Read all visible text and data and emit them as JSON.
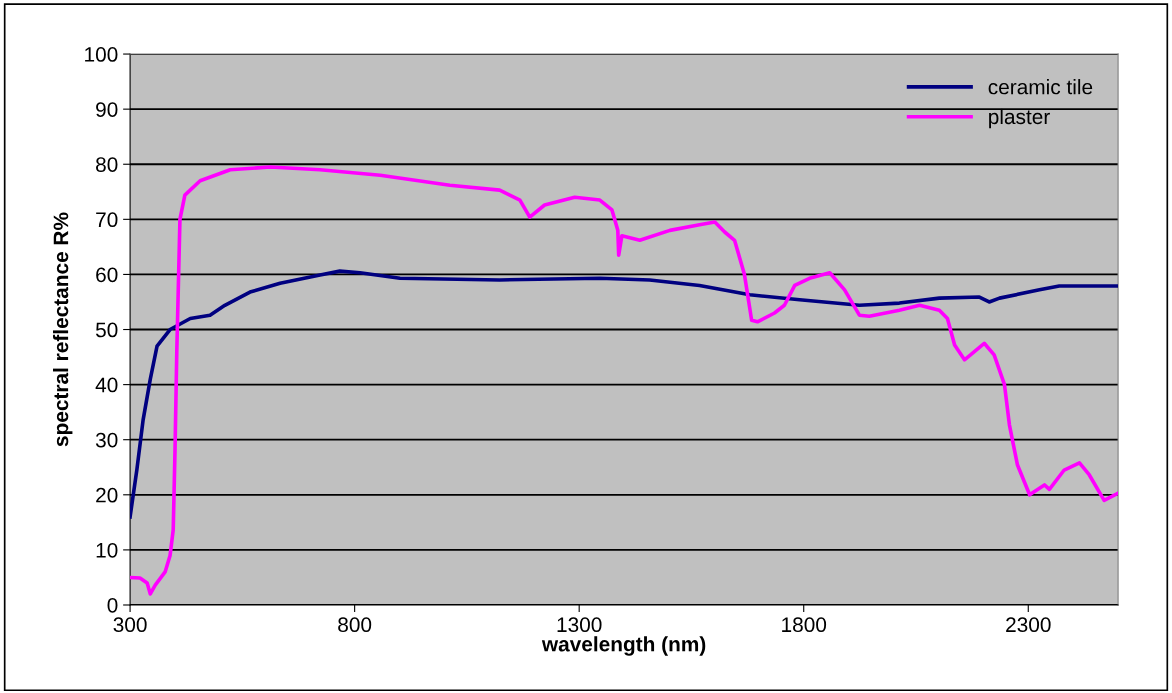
{
  "chart_data": {
    "type": "line",
    "xlabel": "wavelength (nm)",
    "ylabel": "spectral reflectance R%",
    "xlim": [
      300,
      2500
    ],
    "xticks": [
      300,
      800,
      1300,
      1800,
      2300
    ],
    "ylim": [
      0,
      100
    ],
    "yticks": [
      0,
      10,
      20,
      30,
      40,
      50,
      60,
      70,
      80,
      90,
      100
    ],
    "grid": "y",
    "legend": "top right",
    "marker": "none",
    "line_style": "solid",
    "series": [
      {
        "name": "ceramic tile",
        "color": "#000080",
        "x": [
          300,
          315,
          329,
          345,
          360,
          389,
          434,
          478,
          511,
          567,
          634,
          723,
          767,
          812,
          901,
          1123,
          1346,
          1457,
          1568,
          1680,
          1791,
          1924,
          2013,
          2102,
          2191,
          2213,
          2236,
          2325,
          2369,
          2500
        ],
        "values": [
          16,
          24.5,
          33.6,
          41,
          47,
          50,
          52,
          52.6,
          54.4,
          56.8,
          58.4,
          59.9,
          60.6,
          60.3,
          59.3,
          59,
          59.3,
          59,
          58,
          56.3,
          55.4,
          54.4,
          54.8,
          55.7,
          55.9,
          55,
          55.7,
          57.2,
          57.9,
          57.9
        ]
      },
      {
        "name": "plaster",
        "color": "#ff00ff",
        "x": [
          300,
          322,
          338,
          345,
          356,
          378,
          389,
          396,
          400,
          404,
          411,
          422,
          456,
          523,
          612,
          723,
          857,
          1012,
          1123,
          1168,
          1190,
          1223,
          1290,
          1346,
          1373,
          1386,
          1388,
          1395,
          1435,
          1502,
          1568,
          1602,
          1624,
          1646,
          1668,
          1684,
          1697,
          1735,
          1757,
          1780,
          1813,
          1858,
          1891,
          1924,
          1946,
          2013,
          2058,
          2102,
          2120,
          2136,
          2158,
          2202,
          2224,
          2247,
          2258,
          2276,
          2303,
          2336,
          2347,
          2380,
          2414,
          2436,
          2469,
          2500
        ],
        "values": [
          5,
          4.9,
          4,
          2,
          3.6,
          6,
          9,
          13.6,
          28,
          46,
          70,
          74.4,
          77,
          79,
          79.5,
          79,
          78,
          76.2,
          75.3,
          73.5,
          70.4,
          72.6,
          74,
          73.5,
          71.7,
          68,
          63.5,
          67,
          66.2,
          68,
          69,
          69.5,
          67.7,
          66.2,
          60,
          51.7,
          51.4,
          53,
          54.4,
          58,
          59.3,
          60.3,
          57.2,
          52.6,
          52.4,
          53.5,
          54.4,
          53.5,
          52,
          47.2,
          44.5,
          47.5,
          45.4,
          40,
          32.7,
          25.4,
          20,
          21.8,
          21,
          24.5,
          25.8,
          23.6,
          19,
          20.3
        ]
      }
    ]
  }
}
